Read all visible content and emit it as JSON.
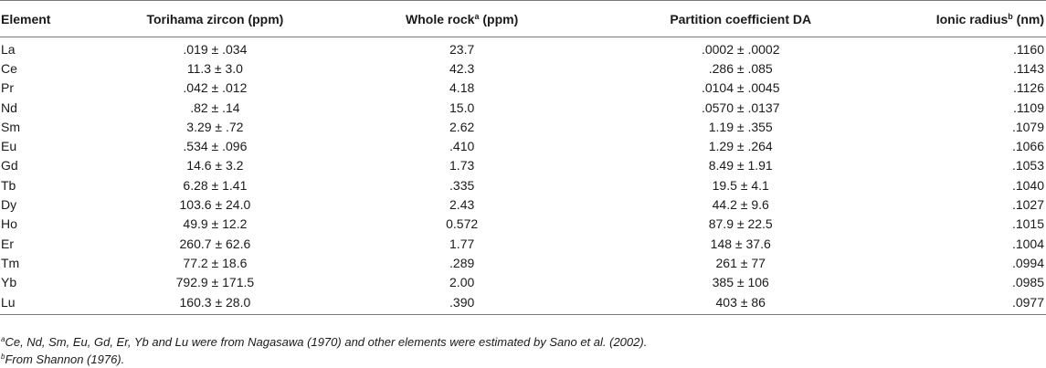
{
  "headers": {
    "element": "Element",
    "zircon": "Torihama zircon (ppm)",
    "whole_rock": "Whole rock",
    "whole_rock_sup": "a",
    "whole_rock_unit": " (ppm)",
    "partition": "Partition coefficient DA",
    "ionic": "Ionic radius",
    "ionic_sup": "b",
    "ionic_unit": " (nm)"
  },
  "rows": [
    [
      "La",
      ".019 ± .034",
      "23.7",
      ".0002 ± .0002",
      ".1160"
    ],
    [
      "Ce",
      "11.3 ± 3.0",
      "42.3",
      ".286 ± .085",
      ".1143"
    ],
    [
      "Pr",
      ".042 ± .012",
      "4.18",
      ".0104 ± .0045",
      ".1126"
    ],
    [
      "Nd",
      ".82 ± .14",
      "15.0",
      ".0570 ± .0137",
      ".1109"
    ],
    [
      "Sm",
      "3.29 ± .72",
      "2.62",
      "1.19 ± .355",
      ".1079"
    ],
    [
      "Eu",
      ".534 ± .096",
      ".410",
      "1.29 ± .264",
      ".1066"
    ],
    [
      "Gd",
      "14.6 ± 3.2",
      "1.73",
      "8.49 ± 1.91",
      ".1053"
    ],
    [
      "Tb",
      "6.28 ± 1.41",
      ".335",
      "19.5 ± 4.1",
      ".1040"
    ],
    [
      "Dy",
      "103.6 ± 24.0",
      "2.43",
      "44.2 ± 9.6",
      ".1027"
    ],
    [
      "Ho",
      "49.9 ± 12.2",
      "0.572",
      "87.9 ± 22.5",
      ".1015"
    ],
    [
      "Er",
      "260.7 ± 62.6",
      "1.77",
      "148 ± 37.6",
      ".1004"
    ],
    [
      "Tm",
      "77.2 ± 18.6",
      ".289",
      "261 ± 77",
      ".0994"
    ],
    [
      "Yb",
      "792.9 ± 171.5",
      "2.00",
      "385 ± 106",
      ".0985"
    ],
    [
      "Lu",
      "160.3 ± 28.0",
      ".390",
      "403 ± 86",
      ".0977"
    ]
  ],
  "footnotes": [
    {
      "mark": "a",
      "text": "Ce, Nd, Sm, Eu, Gd, Er, Yb and Lu were from Nagasawa (1970) and other elements were estimated by Sano et al. (2002)."
    },
    {
      "mark": "b",
      "text": "From Shannon (1976)."
    }
  ]
}
